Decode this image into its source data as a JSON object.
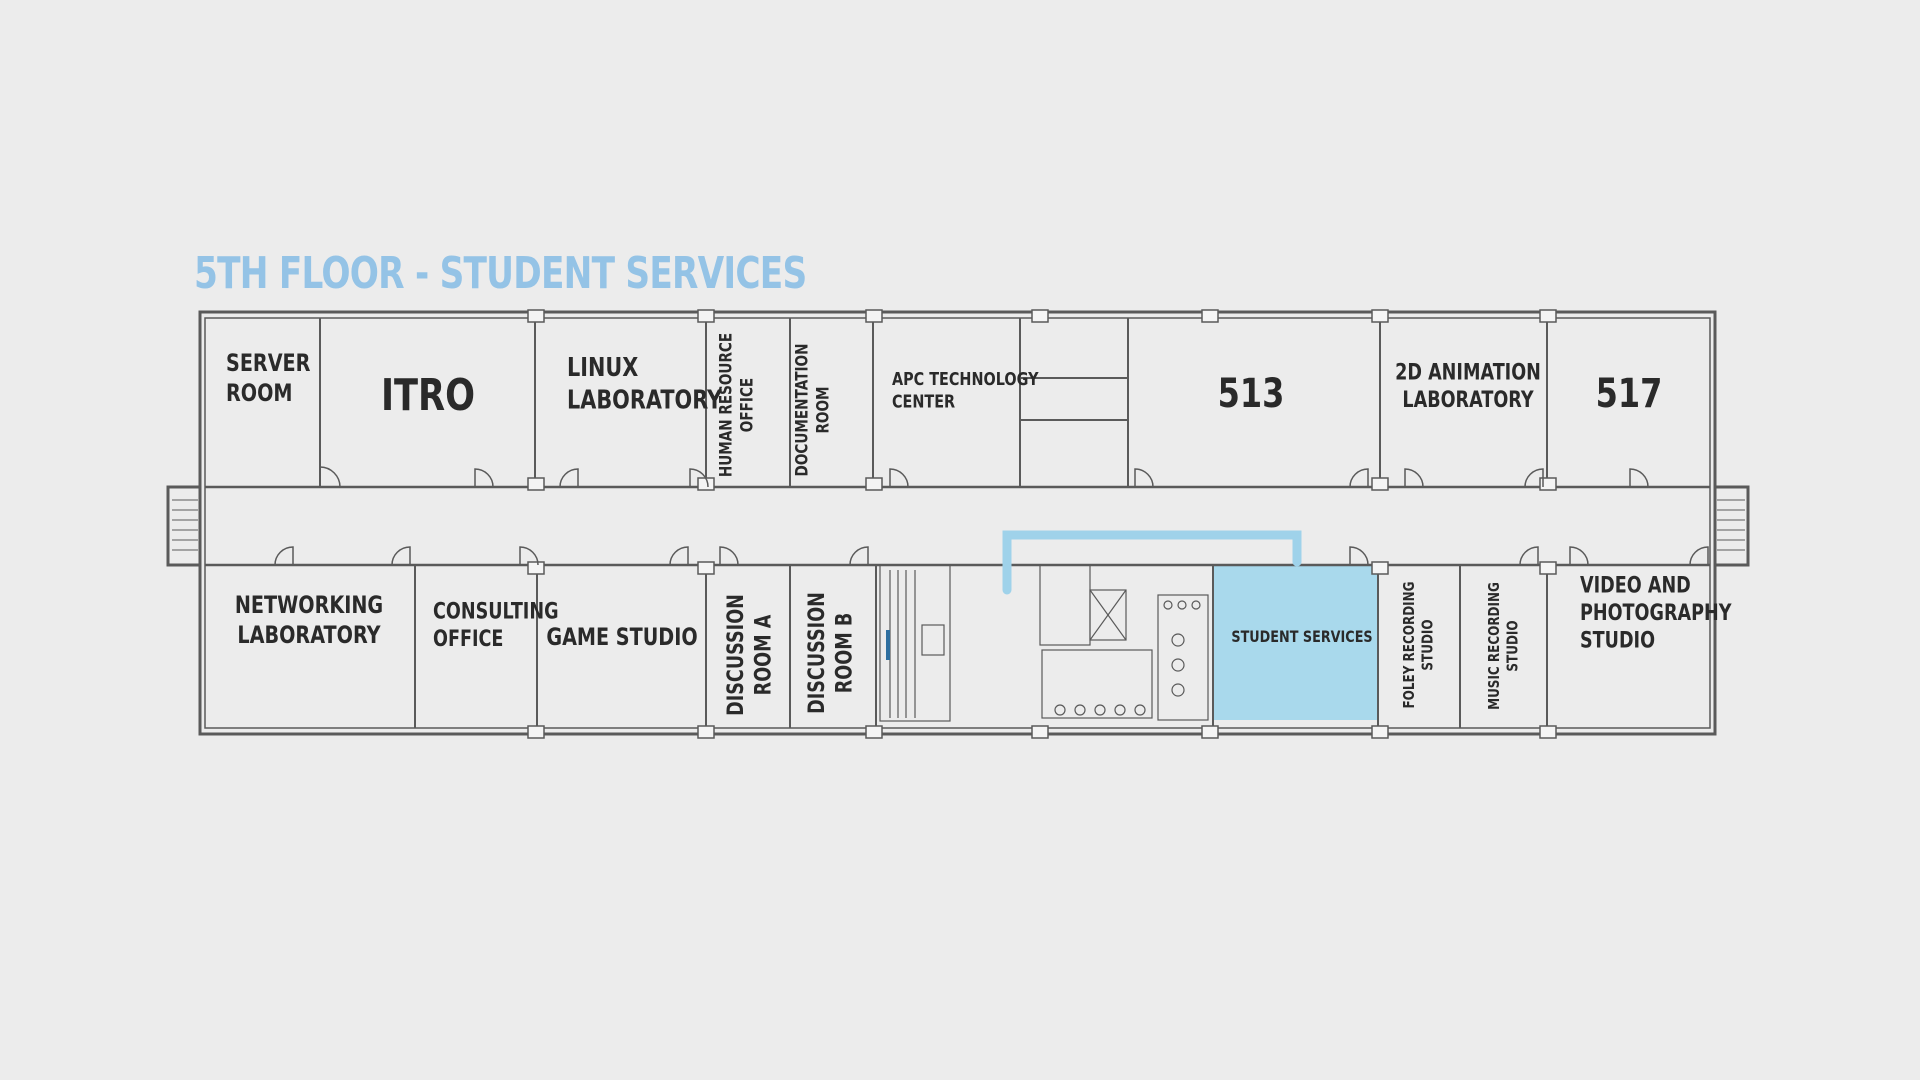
{
  "title": "5TH FLOOR - STUDENT SERVICES",
  "highlight_color": "#a9d9ec",
  "path_color": "#9fd2ea",
  "rooms": {
    "server_room": [
      "SERVER",
      "ROOM"
    ],
    "itro": [
      "ITRO"
    ],
    "linux_laboratory": [
      "LINUX",
      "LABORATORY"
    ],
    "human_resource_office": [
      "HUMAN RESOURCE",
      "OFFICE"
    ],
    "documentation_room": [
      "DOCUMENTATION",
      "ROOM"
    ],
    "apc_technology_center": [
      "APC TECHNOLOGY",
      "CENTER"
    ],
    "room_513": [
      "513"
    ],
    "animation_laboratory": [
      "2D ANIMATION",
      "LABORATORY"
    ],
    "room_517": [
      "517"
    ],
    "networking_laboratory": [
      "NETWORKING",
      "LABORATORY"
    ],
    "consulting_office": [
      "CONSULTING",
      "OFFICE"
    ],
    "game_studio": [
      "GAME STUDIO"
    ],
    "discussion_room_a": [
      "DISCUSSION",
      "ROOM A"
    ],
    "discussion_room_b": [
      "DISCUSSION",
      "ROOM B"
    ],
    "student_services": [
      "STUDENT SERVICES"
    ],
    "foley_recording_studio": [
      "FOLEY RECORDING",
      "STUDIO"
    ],
    "music_recording_studio": [
      "MUSIC RECORDING",
      "STUDIO"
    ],
    "video_photography_studio": [
      "VIDEO AND",
      "PHOTOGRAPHY",
      "STUDIO"
    ]
  }
}
